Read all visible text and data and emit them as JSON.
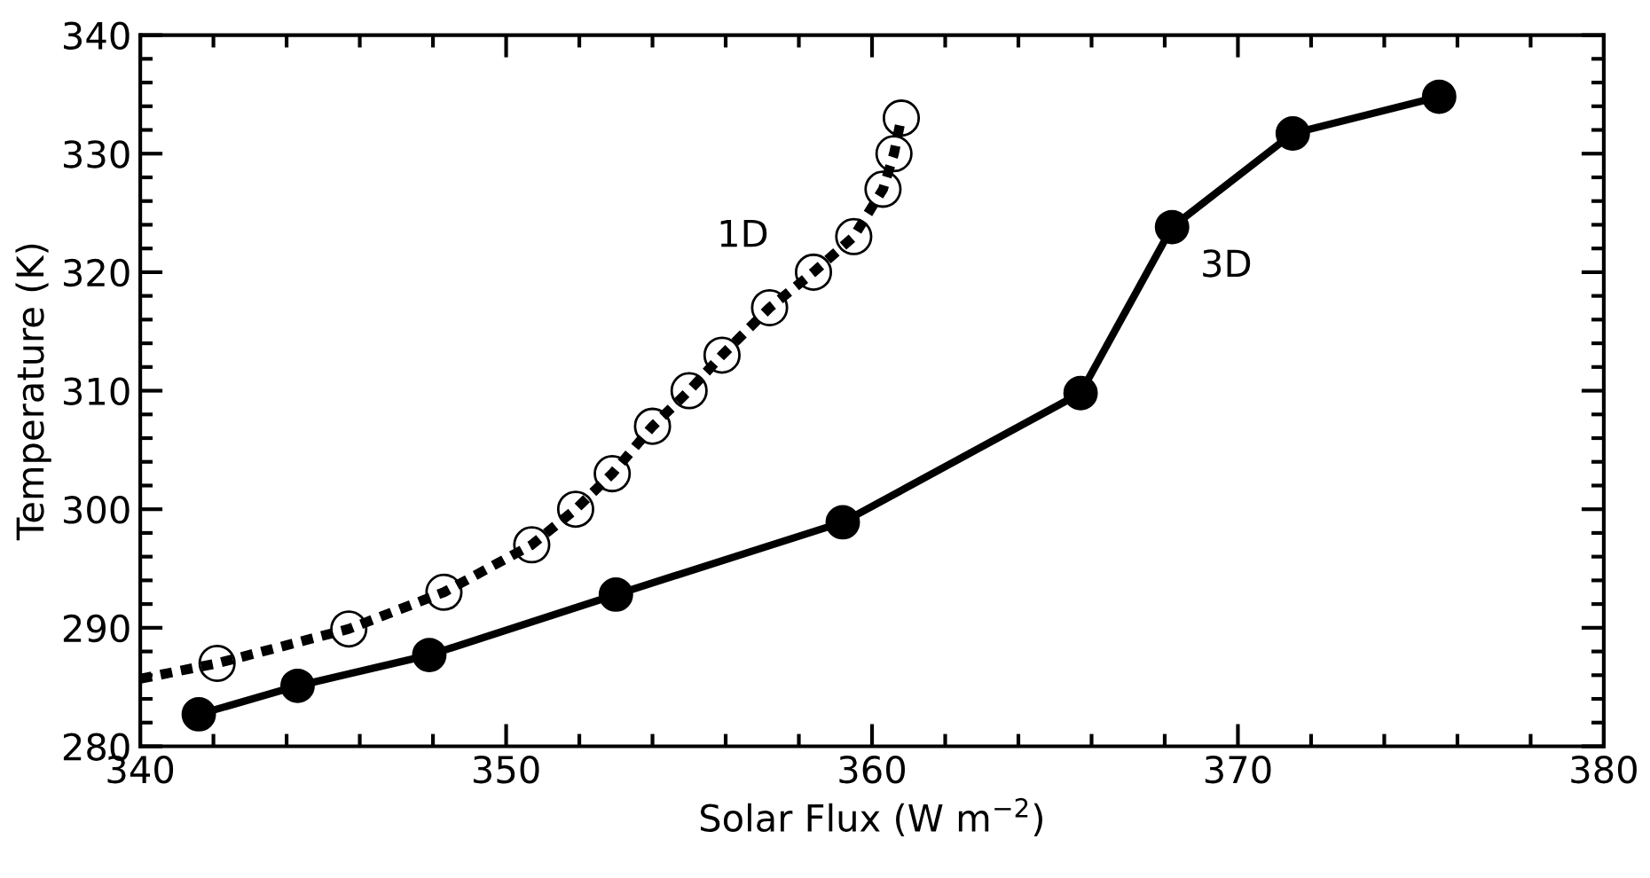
{
  "chart_data": {
    "type": "line",
    "xlabel": "Solar Flux (W m$^{−2}$)",
    "ylabel": "Temperature (K)",
    "xlim": [
      340,
      380
    ],
    "xticks": [
      340,
      350,
      360,
      370,
      380
    ],
    "ylim": [
      280,
      340
    ],
    "yticks": [
      280,
      290,
      300,
      310,
      320,
      330,
      340
    ],
    "grid": false,
    "legend": false,
    "series": [
      {
        "name": "3D",
        "color": "#000000",
        "marker": "circle",
        "line_style": "solid",
        "x": [
          341.6,
          344.3,
          347.9,
          353.0,
          359.2,
          365.7,
          368.2,
          371.5,
          375.5
        ],
        "values": [
          282.7,
          285.1,
          287.7,
          292.8,
          298.9,
          309.8,
          323.8,
          331.7,
          334.8
        ]
      },
      {
        "name": "1D",
        "color": "#000000",
        "marker": "none",
        "line_style": "dashed",
        "x": [
          340.0,
          342.1,
          345.7,
          348.3,
          350.7,
          351.9,
          352.9,
          354.0,
          355.0,
          355.9,
          357.2,
          358.4,
          359.5,
          360.3,
          360.6,
          360.8
        ],
        "values": [
          285.7,
          287.0,
          289.9,
          293.0,
          297.0,
          300.0,
          303.0,
          307.0,
          310.0,
          313.0,
          317.0,
          320.0,
          323.0,
          327.0,
          330.0,
          333.0
        ]
      },
      {
        "type": "scatter",
        "color": "#000000",
        "marker": "circle",
        "x": [
          342.1,
          345.7,
          348.3,
          350.7,
          351.9,
          352.9,
          354.0,
          355.0,
          355.9,
          357.2,
          358.4,
          359.5,
          360.3,
          360.6,
          360.8
        ],
        "values": [
          287.0,
          289.9,
          293.0,
          297.0,
          300.0,
          303.0,
          307.0,
          310.0,
          313.0,
          317.0,
          320.0,
          323.0,
          327.0,
          330.0,
          333.0
        ]
      }
    ]
  }
}
